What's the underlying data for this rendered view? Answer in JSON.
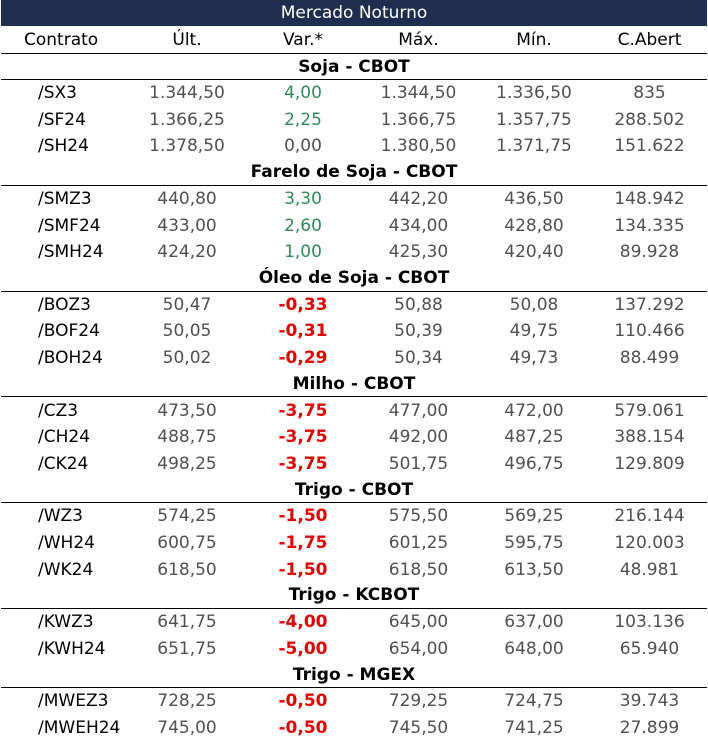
{
  "title": "Mercado Noturno",
  "headers": [
    "Contrato",
    "Últ.",
    "Var.*",
    "Máx.",
    "Mín.",
    "C.Abert"
  ],
  "sections": [
    {
      "name": "Soja - CBOT",
      "rows": [
        {
          "contract": "/SX3",
          "last": "1.344,50",
          "var": "4,00",
          "sign": "pos",
          "max": "1.344,50",
          "min": "1.336,50",
          "open_interest": "835"
        },
        {
          "contract": "/SF24",
          "last": "1.366,25",
          "var": "2,25",
          "sign": "pos",
          "max": "1.366,75",
          "min": "1.357,75",
          "open_interest": "288.502"
        },
        {
          "contract": "/SH24",
          "last": "1.378,50",
          "var": "0,00",
          "sign": "zero",
          "max": "1.380,50",
          "min": "1.371,75",
          "open_interest": "151.622"
        }
      ]
    },
    {
      "name": "Farelo de Soja - CBOT",
      "rows": [
        {
          "contract": "/SMZ3",
          "last": "440,80",
          "var": "3,30",
          "sign": "pos",
          "max": "442,20",
          "min": "436,50",
          "open_interest": "148.942"
        },
        {
          "contract": "/SMF24",
          "last": "433,00",
          "var": "2,60",
          "sign": "pos",
          "max": "434,00",
          "min": "428,80",
          "open_interest": "134.335"
        },
        {
          "contract": "/SMH24",
          "last": "424,20",
          "var": "1,00",
          "sign": "pos",
          "max": "425,30",
          "min": "420,40",
          "open_interest": "89.928"
        }
      ]
    },
    {
      "name": "Óleo de Soja - CBOT",
      "rows": [
        {
          "contract": "/BOZ3",
          "last": "50,47",
          "var": "-0,33",
          "sign": "neg",
          "max": "50,88",
          "min": "50,08",
          "open_interest": "137.292"
        },
        {
          "contract": "/BOF24",
          "last": "50,05",
          "var": "-0,31",
          "sign": "neg",
          "max": "50,39",
          "min": "49,75",
          "open_interest": "110.466"
        },
        {
          "contract": "/BOH24",
          "last": "50,02",
          "var": "-0,29",
          "sign": "neg",
          "max": "50,34",
          "min": "49,73",
          "open_interest": "88.499"
        }
      ]
    },
    {
      "name": "Milho - CBOT",
      "rows": [
        {
          "contract": "/CZ3",
          "last": "473,50",
          "var": "-3,75",
          "sign": "neg",
          "max": "477,00",
          "min": "472,00",
          "open_interest": "579.061"
        },
        {
          "contract": "/CH24",
          "last": "488,75",
          "var": "-3,75",
          "sign": "neg",
          "max": "492,00",
          "min": "487,25",
          "open_interest": "388.154"
        },
        {
          "contract": "/CK24",
          "last": "498,25",
          "var": "-3,75",
          "sign": "neg",
          "max": "501,75",
          "min": "496,75",
          "open_interest": "129.809"
        }
      ]
    },
    {
      "name": "Trigo - CBOT",
      "rows": [
        {
          "contract": "/WZ3",
          "last": "574,25",
          "var": "-1,50",
          "sign": "neg",
          "max": "575,50",
          "min": "569,25",
          "open_interest": "216.144"
        },
        {
          "contract": "/WH24",
          "last": "600,75",
          "var": "-1,75",
          "sign": "neg",
          "max": "601,25",
          "min": "595,75",
          "open_interest": "120.003"
        },
        {
          "contract": "/WK24",
          "last": "618,50",
          "var": "-1,50",
          "sign": "neg",
          "max": "618,50",
          "min": "613,50",
          "open_interest": "48.981"
        }
      ]
    },
    {
      "name": "Trigo - KCBOT",
      "rows": [
        {
          "contract": "/KWZ3",
          "last": "641,75",
          "var": "-4,00",
          "sign": "neg",
          "max": "645,00",
          "min": "637,00",
          "open_interest": "103.136"
        },
        {
          "contract": "/KWH24",
          "last": "651,75",
          "var": "-5,00",
          "sign": "neg",
          "max": "654,00",
          "min": "648,00",
          "open_interest": "65.940"
        }
      ]
    },
    {
      "name": "Trigo - MGEX",
      "rows": [
        {
          "contract": "/MWEZ3",
          "last": "728,25",
          "var": "-0,50",
          "sign": "neg",
          "max": "729,25",
          "min": "724,75",
          "open_interest": "39.743"
        },
        {
          "contract": "/MWEH24",
          "last": "745,00",
          "var": "-0,50",
          "sign": "neg",
          "max": "745,50",
          "min": "741,25",
          "open_interest": "27.899"
        }
      ]
    }
  ]
}
